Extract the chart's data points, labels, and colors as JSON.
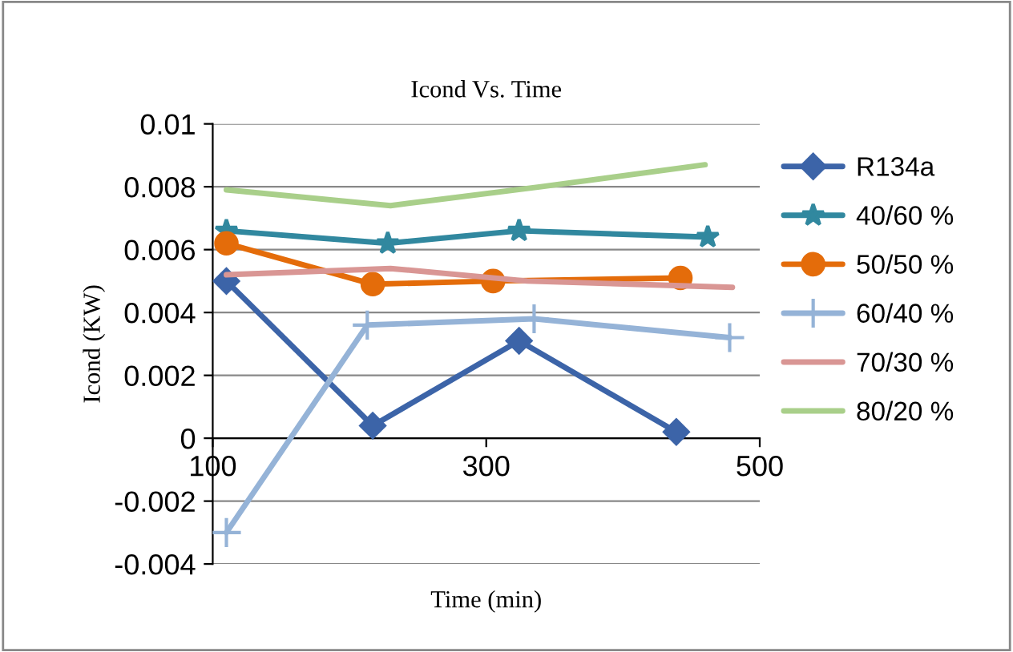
{
  "chart_data": {
    "type": "line",
    "title": "Icond Vs. Time",
    "xlabel": "Time (min)",
    "ylabel": "Icond (KW)",
    "xlim": [
      100,
      500
    ],
    "xticks": [
      100,
      300,
      500
    ],
    "ylim": [
      -0.004,
      0.01
    ],
    "yticks": [
      -0.004,
      -0.002,
      0,
      0.002,
      0.004,
      0.006,
      0.008,
      0.01
    ],
    "grid": "y",
    "legend": "right",
    "line_style": "solid",
    "series": [
      {
        "name": "R134a",
        "color": "#3c64a8",
        "marker": "diamond",
        "x": [
          110,
          217,
          324,
          439
        ],
        "values": [
          0.005,
          0.0004,
          0.0031,
          0.0002
        ]
      },
      {
        "name": "40/60 %",
        "color": "#31889f",
        "marker": "star",
        "x": [
          110,
          228,
          324,
          462
        ],
        "values": [
          0.0066,
          0.0062,
          0.0066,
          0.0064
        ]
      },
      {
        "name": "50/50 %",
        "color": "#e46c0a",
        "marker": "circle",
        "x": [
          110,
          217,
          305,
          442
        ],
        "values": [
          0.0062,
          0.0049,
          0.005,
          0.0051
        ]
      },
      {
        "name": "60/40 %",
        "color": "#95b3d7",
        "marker": "cross",
        "x": [
          110,
          213,
          335,
          478
        ],
        "values": [
          -0.003,
          0.0036,
          0.0038,
          0.0032
        ]
      },
      {
        "name": "70/30 %",
        "color": "#d99694",
        "marker": "none",
        "x": [
          110,
          230,
          330,
          480
        ],
        "values": [
          0.0052,
          0.0054,
          0.005,
          0.0048
        ]
      },
      {
        "name": "80/20 %",
        "color": "#a9cf8a",
        "marker": "none",
        "x": [
          110,
          230,
          340,
          460
        ],
        "values": [
          0.0079,
          0.0074,
          0.008,
          0.0087
        ]
      }
    ]
  }
}
